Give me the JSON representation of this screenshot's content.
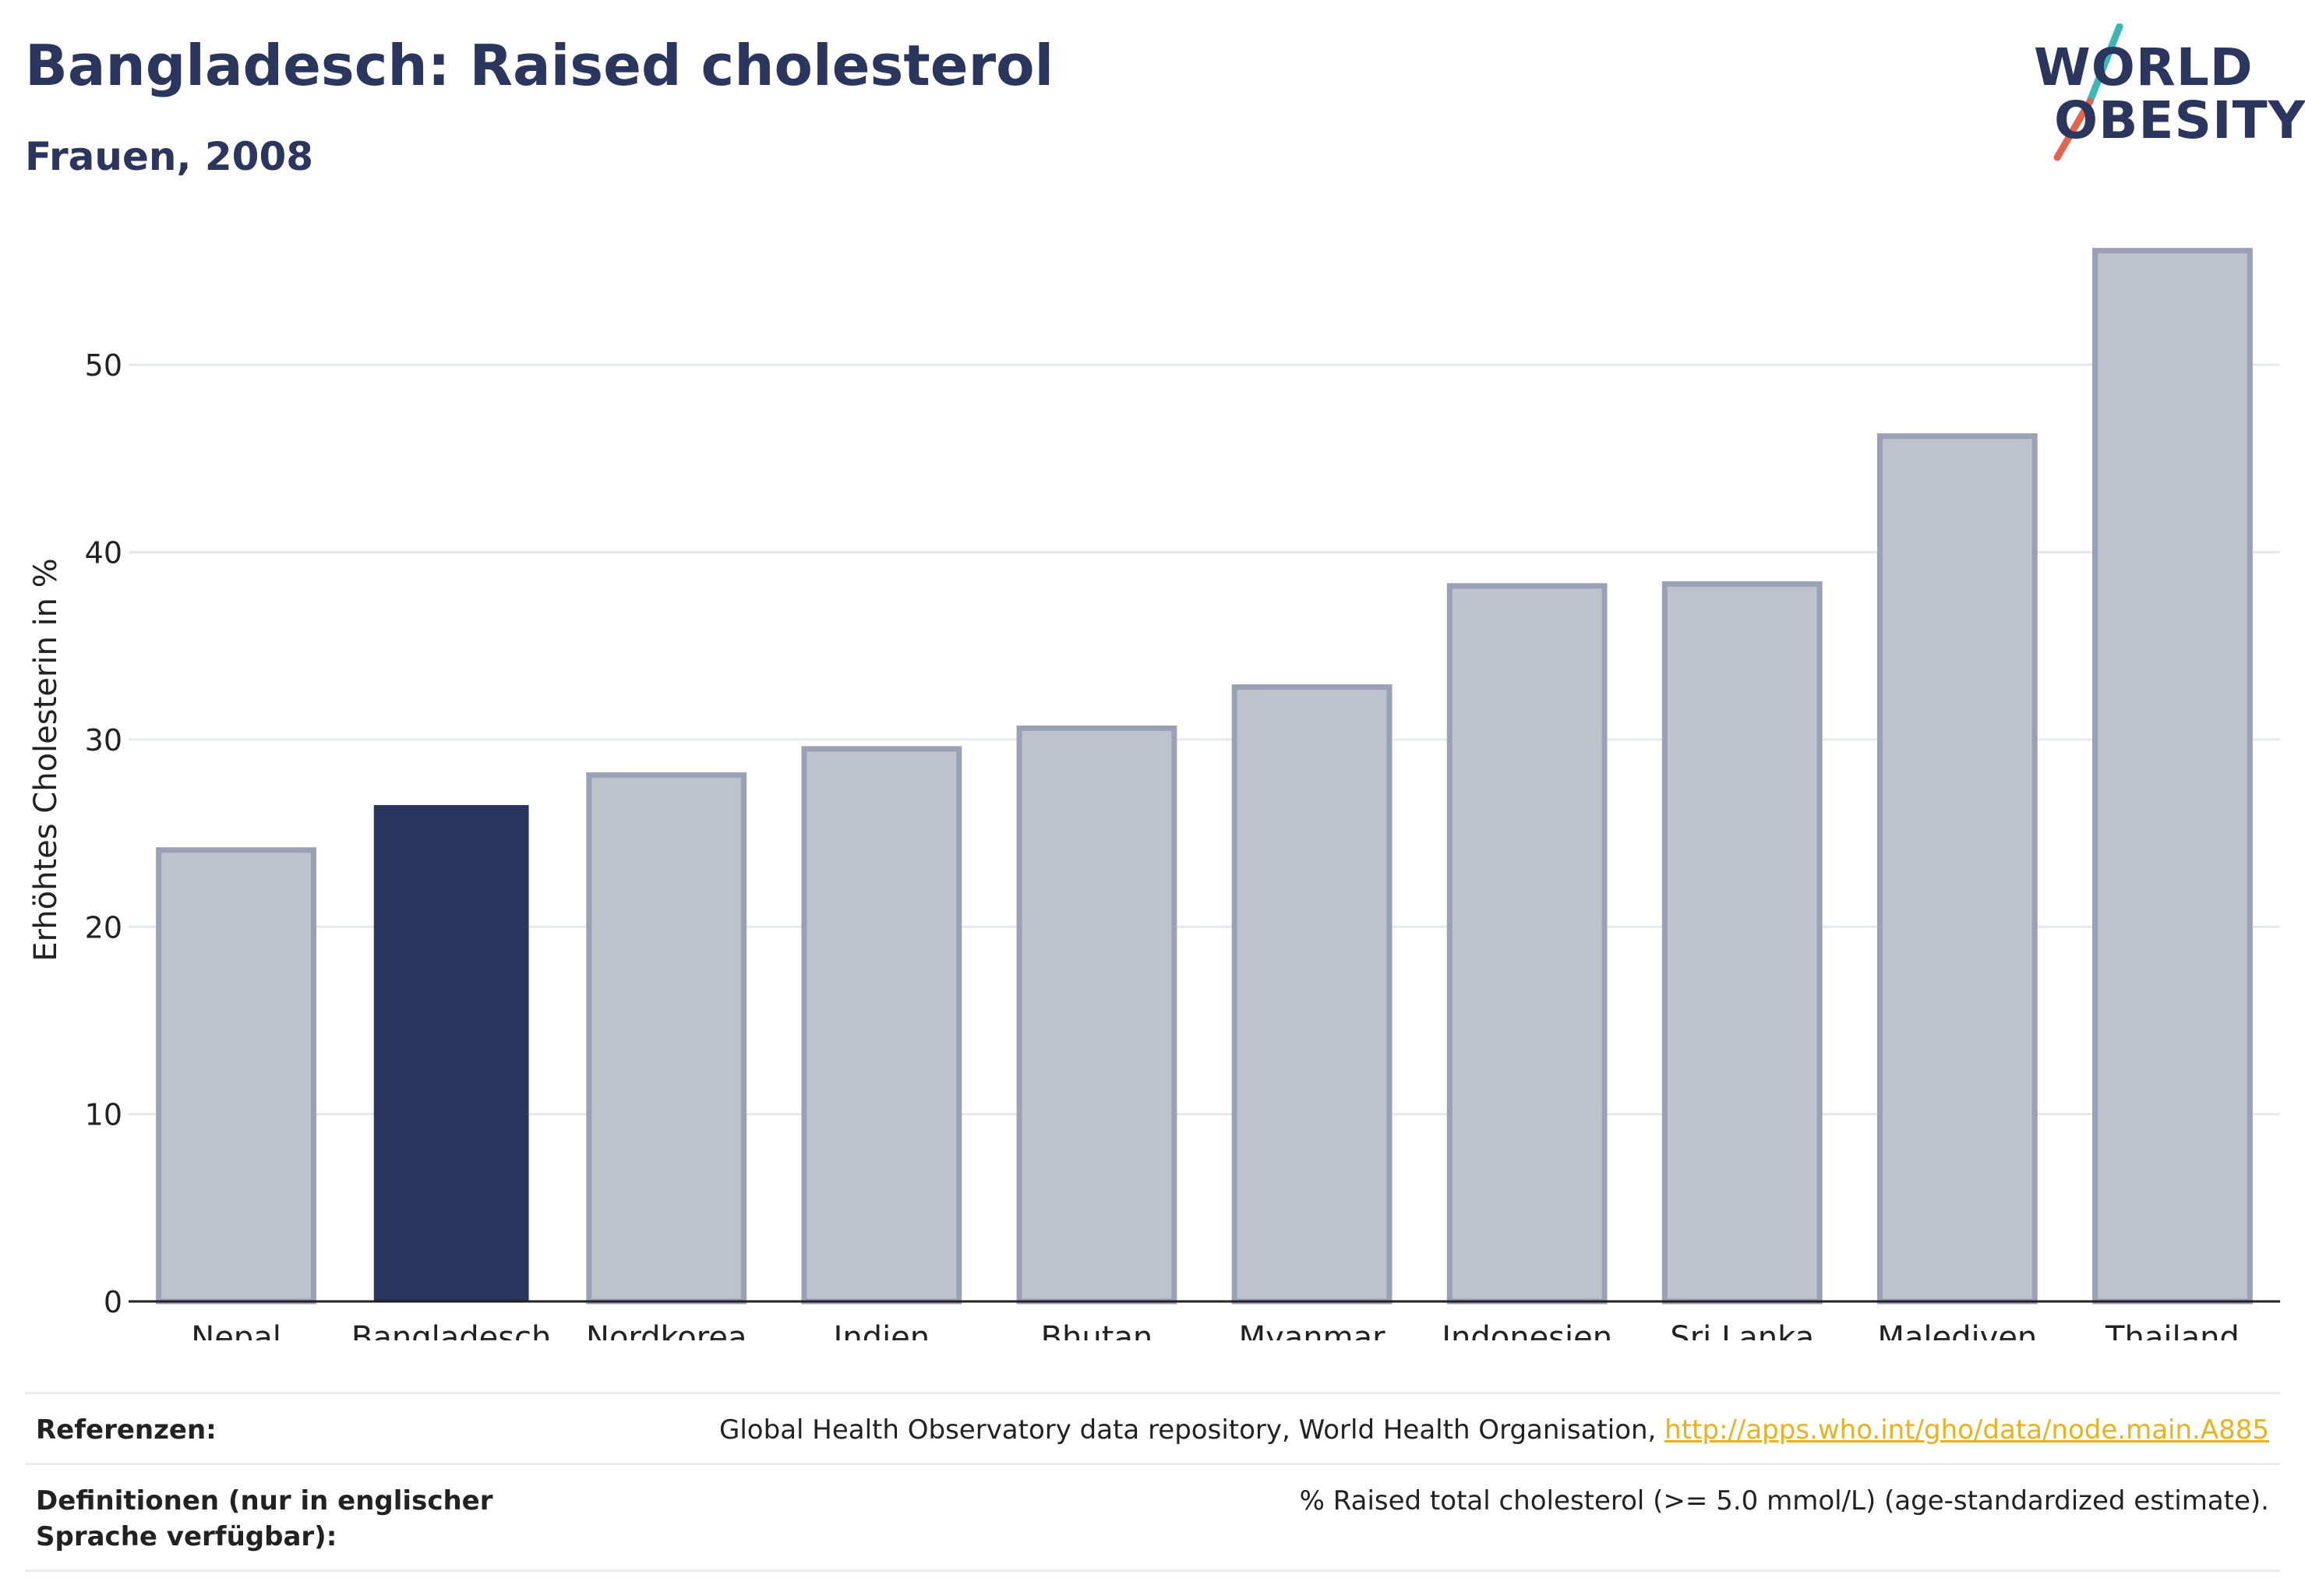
{
  "title": "Bangladesch: Raised cholesterol",
  "subtitle": "Frauen, 2008",
  "logo": {
    "line1": "WORLD",
    "line2": "OBESITY",
    "colors": {
      "text": "#2b365f",
      "slash_top": "#3ab7b8",
      "slash_bottom": "#e5644e"
    }
  },
  "colors": {
    "highlight_bar": "#2b365f",
    "other_bar_fill": "#bec2cd",
    "other_bar_stroke": "#9aa0b5",
    "grid": "#e6e8ee",
    "axis": "#222222",
    "link": "#e8b21f"
  },
  "chart_data": {
    "type": "bar",
    "title": "Bangladesch: Raised cholesterol",
    "subtitle": "Frauen, 2008",
    "xlabel": "",
    "ylabel": "Erhöhtes Cholesterin in %",
    "categories": [
      "Nepal",
      "Bangladesch",
      "Nordkorea",
      "Indien",
      "Bhutan",
      "Myanmar",
      "Indonesien",
      "Sri Lanka",
      "Malediven",
      "Thailand"
    ],
    "values": [
      24.1,
      26.5,
      28.1,
      29.5,
      30.6,
      32.8,
      38.2,
      38.3,
      46.2,
      56.1
    ],
    "highlight": "Bangladesch",
    "ylim": [
      0,
      57
    ],
    "yticks": [
      0,
      10,
      20,
      30,
      40,
      50
    ],
    "grid": true,
    "legend": "none"
  },
  "footer": {
    "references_label": "Referenzen:",
    "references_text": "Global Health Observatory data repository, World Health Organisation, ",
    "references_link": "http://apps.who.int/gho/data/node.main.A885",
    "definitions_label": "Definitionen (nur in englischer Sprache verfügbar):",
    "definitions_text": "% Raised total cholesterol (>= 5.0 mmol/L) (age-standardized estimate)."
  }
}
